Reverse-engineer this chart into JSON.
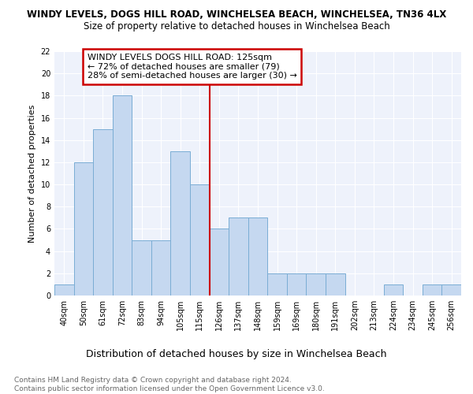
{
  "title": "WINDY LEVELS, DOGS HILL ROAD, WINCHELSEA BEACH, WINCHELSEA, TN36 4LX",
  "subtitle": "Size of property relative to detached houses in Winchelsea Beach",
  "xlabel": "Distribution of detached houses by size in Winchelsea Beach",
  "ylabel": "Number of detached properties",
  "categories": [
    "40sqm",
    "50sqm",
    "61sqm",
    "72sqm",
    "83sqm",
    "94sqm",
    "105sqm",
    "115sqm",
    "126sqm",
    "137sqm",
    "148sqm",
    "159sqm",
    "169sqm",
    "180sqm",
    "191sqm",
    "202sqm",
    "213sqm",
    "224sqm",
    "234sqm",
    "245sqm",
    "256sqm"
  ],
  "values": [
    1,
    12,
    15,
    18,
    5,
    5,
    13,
    10,
    6,
    7,
    7,
    2,
    2,
    2,
    2,
    0,
    0,
    1,
    0,
    1,
    1
  ],
  "bar_color": "#c5d8f0",
  "bar_edge_color": "#7aadd4",
  "ylim": [
    0,
    22
  ],
  "yticks": [
    0,
    2,
    4,
    6,
    8,
    10,
    12,
    14,
    16,
    18,
    20,
    22
  ],
  "vline_x_index": 8,
  "vline_color": "#cc0000",
  "annotation_text": "WINDY LEVELS DOGS HILL ROAD: 125sqm\n← 72% of detached houses are smaller (79)\n28% of semi-detached houses are larger (30) →",
  "annotation_box_color": "#ffffff",
  "annotation_box_edge": "#cc0000",
  "footer": "Contains HM Land Registry data © Crown copyright and database right 2024.\nContains public sector information licensed under the Open Government Licence v3.0.",
  "background_color": "#eef2fb",
  "title_fontsize": 8.5,
  "subtitle_fontsize": 8.5,
  "ylabel_fontsize": 8,
  "xlabel_fontsize": 9,
  "tick_fontsize": 7,
  "footer_fontsize": 6.5,
  "annot_fontsize": 8
}
